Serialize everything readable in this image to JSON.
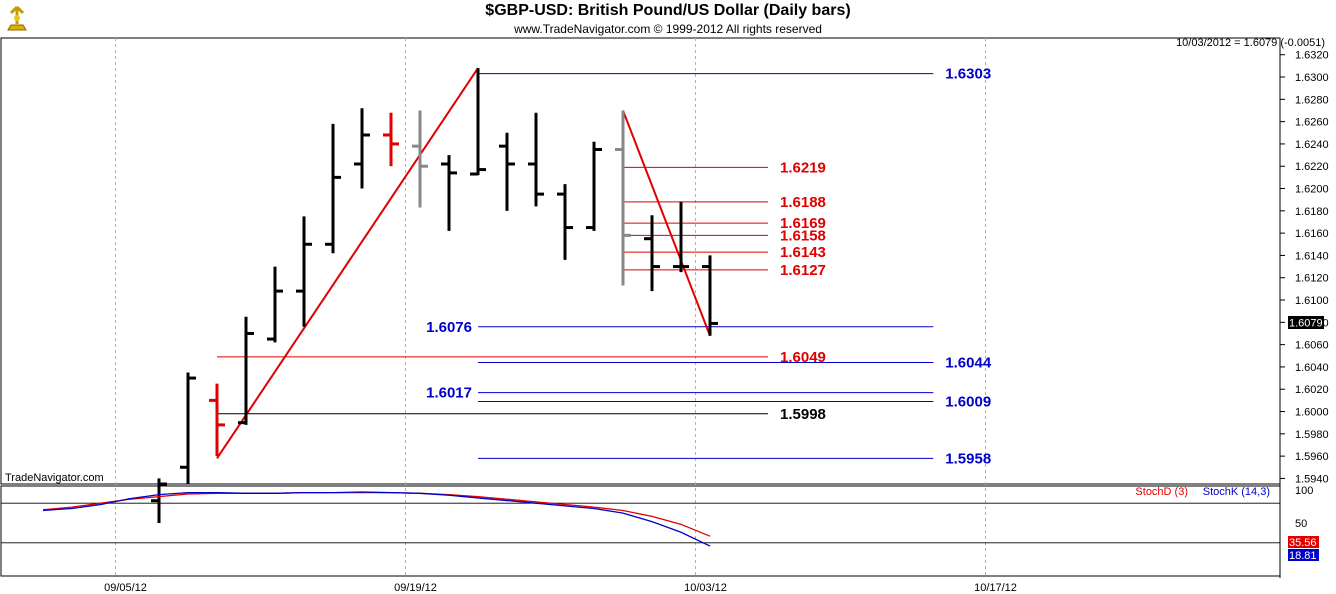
{
  "header": {
    "title": "$GBP-USD:  British Pound/US Dollar  (Daily bars)",
    "copyright": "www.TradeNavigator.com © 1999-2012 All rights reserved",
    "quote": "10/03/2012 = 1.6079 (-0.0051)",
    "watermark": "TradeNavigator.com"
  },
  "chart_data": [
    {
      "type": "ohlc",
      "title": "$GBP-USD:  British Pound/US Dollar  (Daily bars)",
      "ylim": [
        1.5935,
        1.6335
      ],
      "y_ticks": [
        "1.6320",
        "1.6300",
        "1.6280",
        "1.6260",
        "1.6240",
        "1.6220",
        "1.6200",
        "1.6180",
        "1.6160",
        "1.6140",
        "1.6120",
        "1.6100",
        "1.6080",
        "1.6060",
        "1.6040",
        "1.6020",
        "1.6000",
        "1.5980",
        "1.5960",
        "1.5940"
      ],
      "x_ticks": [
        {
          "label": "09/05/12",
          "index": 0
        },
        {
          "label": "09/19/12",
          "index": 10
        },
        {
          "label": "10/03/12",
          "index": 20
        },
        {
          "label": "10/17/12",
          "index": 30
        }
      ],
      "last_price": "1.6079",
      "bars": [
        {
          "i": 1.5,
          "o": 1.592,
          "h": 1.594,
          "l": 1.59,
          "c": 1.5935,
          "color": "#000000"
        },
        {
          "i": 2.5,
          "o": 1.595,
          "h": 1.6035,
          "l": 1.5935,
          "c": 1.603,
          "color": "#000000"
        },
        {
          "i": 3.5,
          "o": 1.601,
          "h": 1.6025,
          "l": 1.596,
          "c": 1.5988,
          "color": "#e00000"
        },
        {
          "i": 4.5,
          "o": 1.599,
          "h": 1.6085,
          "l": 1.5988,
          "c": 1.607,
          "color": "#000000"
        },
        {
          "i": 5.5,
          "o": 1.6065,
          "h": 1.613,
          "l": 1.6062,
          "c": 1.6108,
          "color": "#000000"
        },
        {
          "i": 6.5,
          "o": 1.6108,
          "h": 1.6175,
          "l": 1.6076,
          "c": 1.615,
          "color": "#000000"
        },
        {
          "i": 7.5,
          "o": 1.615,
          "h": 1.6258,
          "l": 1.6142,
          "c": 1.621,
          "color": "#000000"
        },
        {
          "i": 8.5,
          "o": 1.6222,
          "h": 1.6272,
          "l": 1.62,
          "c": 1.6248,
          "color": "#000000"
        },
        {
          "i": 9.5,
          "o": 1.6248,
          "h": 1.6268,
          "l": 1.622,
          "c": 1.624,
          "color": "#e00000"
        },
        {
          "i": 10.5,
          "o": 1.6238,
          "h": 1.627,
          "l": 1.6183,
          "c": 1.622,
          "color": "#888888"
        },
        {
          "i": 11.5,
          "o": 1.6222,
          "h": 1.623,
          "l": 1.6162,
          "c": 1.6214,
          "color": "#000000"
        },
        {
          "i": 12.5,
          "o": 1.6213,
          "h": 1.6308,
          "l": 1.6212,
          "c": 1.6217,
          "color": "#000000"
        },
        {
          "i": 13.5,
          "o": 1.6238,
          "h": 1.625,
          "l": 1.618,
          "c": 1.6222,
          "color": "#000000"
        },
        {
          "i": 14.5,
          "o": 1.6222,
          "h": 1.6268,
          "l": 1.6184,
          "c": 1.6195,
          "color": "#000000"
        },
        {
          "i": 15.5,
          "o": 1.6195,
          "h": 1.6204,
          "l": 1.6136,
          "c": 1.6165,
          "color": "#000000"
        },
        {
          "i": 16.5,
          "o": 1.6165,
          "h": 1.6242,
          "l": 1.6162,
          "c": 1.6235,
          "color": "#000000"
        },
        {
          "i": 17.5,
          "o": 1.6235,
          "h": 1.627,
          "l": 1.6113,
          "c": 1.6158,
          "color": "#888888"
        },
        {
          "i": 18.5,
          "o": 1.6155,
          "h": 1.6176,
          "l": 1.6108,
          "c": 1.613,
          "color": "#000000"
        },
        {
          "i": 19.5,
          "o": 1.613,
          "h": 1.6188,
          "l": 1.6125,
          "c": 1.613,
          "color": "#000000"
        },
        {
          "i": 20.5,
          "o": 1.613,
          "h": 1.614,
          "l": 1.6068,
          "c": 1.6079,
          "color": "#000000"
        }
      ],
      "annotation_lines": [
        {
          "label": "1.6303",
          "value": 1.6303,
          "color": "#0000cc",
          "from": 12.5,
          "to": 28.2,
          "label_at": "right"
        },
        {
          "label": "1.6219",
          "value": 1.6219,
          "color": "#e00000",
          "from": 17.5,
          "to": 22.5,
          "label_at": "right"
        },
        {
          "label": "1.6188",
          "value": 1.6188,
          "color": "#e00000",
          "from": 17.5,
          "to": 22.5,
          "label_at": "right"
        },
        {
          "label": "1.6169",
          "value": 1.6169,
          "color": "#e00000",
          "from": 17.5,
          "to": 22.5,
          "label_at": "right"
        },
        {
          "label": "1.6158",
          "value": 1.6158,
          "color": "#e00000",
          "from": 17.5,
          "to": 22.5,
          "label_at": "right"
        },
        {
          "label": "1.6143",
          "value": 1.6143,
          "color": "#e00000",
          "from": 17.5,
          "to": 22.5,
          "label_at": "right"
        },
        {
          "label": "1.6127",
          "value": 1.6127,
          "color": "#e00000",
          "from": 17.5,
          "to": 22.5,
          "label_at": "right"
        },
        {
          "label": "1.6076",
          "value": 1.6076,
          "color": "#0000cc",
          "from": 12.5,
          "to": 28.2,
          "label_at": "left"
        },
        {
          "label": "1.6049",
          "value": 1.6049,
          "color": "#e00000",
          "from": 3.5,
          "to": 22.5,
          "label_at": "right"
        },
        {
          "label": "1.6044",
          "value": 1.6044,
          "color": "#0000cc",
          "from": 12.5,
          "to": 28.2,
          "label_at": "right"
        },
        {
          "label": "1.6017",
          "value": 1.6017,
          "color": "#0000cc",
          "from": 12.5,
          "to": 28.2,
          "label_at": "left"
        },
        {
          "label": "1.6009",
          "value": 1.6009,
          "color": "#0000cc",
          "from": 12.5,
          "to": 28.2,
          "label_at": "right"
        },
        {
          "label": "1.5998",
          "value": 1.5998,
          "color": "#000000",
          "from": 3.5,
          "to": 22.5,
          "label_at": "right"
        },
        {
          "label": "1.5958",
          "value": 1.5958,
          "color": "#0000cc",
          "from": 12.5,
          "to": 28.2,
          "label_at": "right"
        }
      ],
      "trend_lines": [
        {
          "from": [
            3.5,
            1.5958
          ],
          "to": [
            12.5,
            1.6308
          ],
          "color": "#e00000"
        },
        {
          "from": [
            17.5,
            1.627
          ],
          "to": [
            20.5,
            1.6068
          ],
          "color": "#e00000"
        }
      ]
    },
    {
      "type": "line",
      "title": "Stochastic",
      "ylim": [
        0,
        100
      ],
      "y_ticks": [
        "100",
        "50",
        "0"
      ],
      "reference_levels": [
        80,
        20
      ],
      "x": [
        -2.5,
        -1.5,
        -0.5,
        0.5,
        1.5,
        2.5,
        3.5,
        4.5,
        5.5,
        6.5,
        7.5,
        8.5,
        9.5,
        10.5,
        11.5,
        12.5,
        13.5,
        14.5,
        15.5,
        16.5,
        17.5,
        18.5,
        19.5,
        20.5
      ],
      "series": [
        {
          "name": "StochD (3)",
          "color": "#e00000",
          "values": [
            70,
            74,
            80,
            86,
            90,
            94,
            95,
            95,
            95,
            96,
            96,
            96,
            96,
            95,
            93,
            90,
            86,
            82,
            78,
            74,
            69,
            60,
            48,
            30
          ]
        },
        {
          "name": "StochK (14,3)",
          "color": "#0000cc",
          "values": [
            69,
            72,
            78,
            87,
            93,
            96,
            96,
            95,
            95,
            96,
            96,
            97,
            96,
            95,
            92,
            88,
            84,
            80,
            76,
            72,
            65,
            52,
            36,
            15
          ]
        }
      ],
      "last_values": [
        "35.56",
        "18.81"
      ]
    }
  ]
}
